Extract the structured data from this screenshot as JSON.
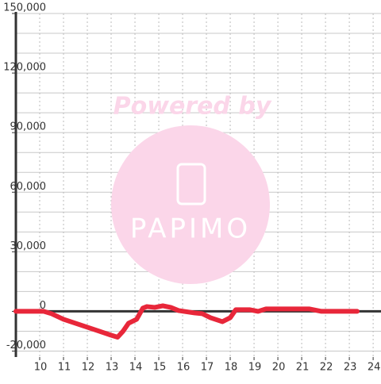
{
  "chart_data": {
    "type": "line",
    "watermark": {
      "title": "Powered by",
      "logo": "PAPIMO"
    },
    "xlim": [
      9,
      24.33
    ],
    "ylim": [
      -23000,
      150000
    ],
    "xticks": [
      10,
      11,
      12,
      13,
      14,
      15,
      16,
      17,
      18,
      19,
      20,
      21,
      22,
      23,
      24
    ],
    "yticks": [
      {
        "value": -20000,
        "label": "-20,000"
      },
      0,
      {
        "value": 30000,
        "label": "30,000"
      },
      {
        "value": 60000,
        "label": "60,000"
      },
      {
        "value": 90000,
        "label": "90,000"
      },
      {
        "value": 120000,
        "label": "120,000"
      },
      {
        "value": 150000,
        "label": "150,000"
      }
    ],
    "grid_y": [
      -20000,
      -10000,
      10000,
      20000,
      30000,
      40000,
      50000,
      60000,
      70000,
      80000,
      90000,
      100000,
      110000,
      120000,
      130000,
      140000,
      150000
    ],
    "grid": true,
    "series": [
      {
        "color": "#e8273a",
        "x": [
          9.0,
          10.17,
          10.5,
          11,
          11.5,
          12,
          12.5,
          13,
          13.27,
          13.5,
          13.73,
          14.07,
          14.33,
          14.5,
          14.83,
          15.17,
          15.5,
          15.83,
          16.5,
          16.83,
          17.17,
          17.67,
          18,
          18.23,
          18.83,
          19.17,
          19.5,
          21.33,
          21.83,
          23.33
        ],
        "values": [
          0,
          0,
          -1200,
          -4000,
          -6000,
          -8000,
          -10000,
          -12000,
          -13000,
          -10000,
          -6000,
          -4000,
          1600,
          2400,
          2000,
          2800,
          2000,
          400,
          -800,
          -1200,
          -3200,
          -5200,
          -3200,
          800,
          800,
          0,
          1200,
          1200,
          0,
          0
        ]
      }
    ]
  }
}
